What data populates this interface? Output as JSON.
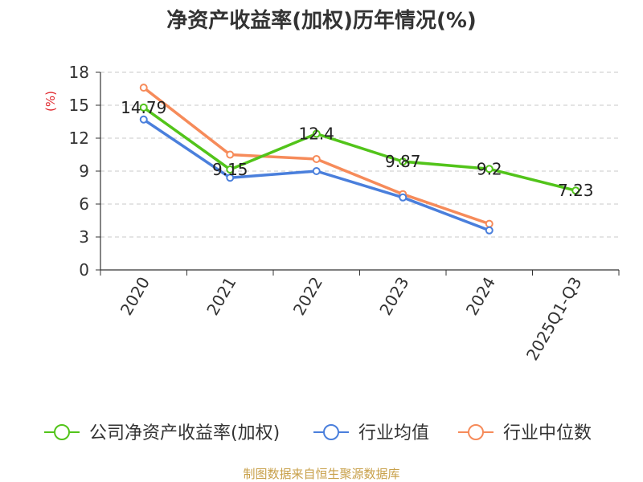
{
  "chart_data": {
    "type": "line",
    "title": "净资产收益率(加权)历年情况(%)",
    "ylabel": "(%)",
    "xlabel": "",
    "categories": [
      "2020",
      "2021",
      "2022",
      "2023",
      "2024",
      "2025Q1-Q3"
    ],
    "ylim": [
      0,
      18
    ],
    "yticks": [
      0,
      3,
      6,
      9,
      12,
      15,
      18
    ],
    "grid": true,
    "legend_position": "bottom",
    "series": [
      {
        "name": "公司净资产收益率(加权)",
        "color": "#52c41a",
        "values": [
          14.79,
          9.15,
          12.4,
          9.87,
          9.2,
          7.23
        ],
        "labels": [
          "14.79",
          "9.15",
          "12.4",
          "9.87",
          "9.2",
          "7.23"
        ]
      },
      {
        "name": "行业均值",
        "color": "#4a7fdc",
        "values": [
          13.7,
          8.4,
          9.0,
          6.6,
          3.6,
          null
        ]
      },
      {
        "name": "行业中位数",
        "color": "#f68b5a",
        "values": [
          16.6,
          10.5,
          10.1,
          6.9,
          4.2,
          null
        ]
      }
    ]
  },
  "footer": {
    "source": "制图数据来自恒生聚源数据库"
  }
}
